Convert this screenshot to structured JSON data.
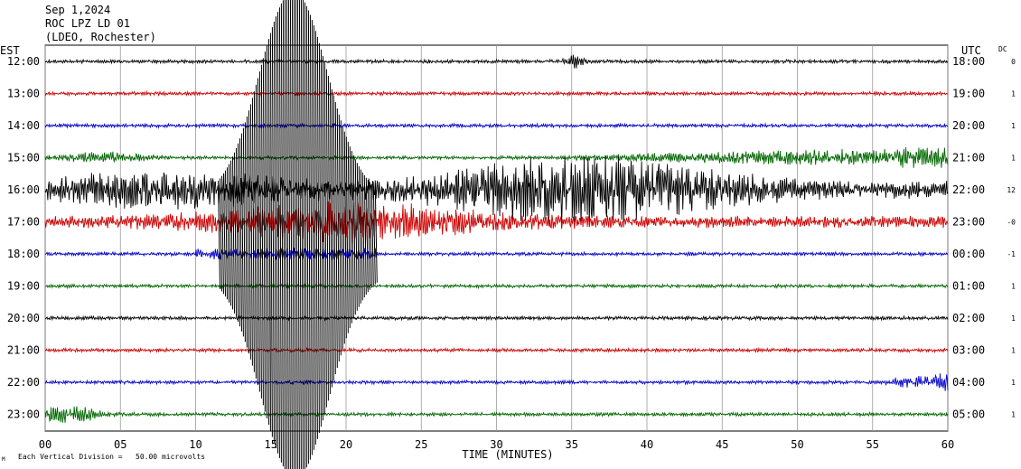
{
  "header": {
    "date": "Sep 1,2024",
    "station": "ROC LPZ LD 01",
    "network": "(LDEO, Rochester)"
  },
  "left_axis_label": "EST",
  "right_axis_label": "UTC",
  "dc_label": "DC",
  "footer_note": "Each Vertical Division =   50.00 microvolts",
  "corner_mark": "M",
  "chart_data": {
    "type": "line",
    "xlabel": "TIME (MINUTES)",
    "xlim": [
      0,
      60
    ],
    "x_ticks": [
      "00",
      "05",
      "10",
      "15",
      "20",
      "25",
      "30",
      "35",
      "40",
      "45",
      "50",
      "55",
      "60"
    ],
    "row_colors": [
      "#000000",
      "#cc0000",
      "#0000cc",
      "#006600"
    ],
    "rows": [
      {
        "est": "12:00",
        "utc": "18:00",
        "dc": "0"
      },
      {
        "est": "13:00",
        "utc": "19:00",
        "dc": "1"
      },
      {
        "est": "14:00",
        "utc": "20:00",
        "dc": "1"
      },
      {
        "est": "15:00",
        "utc": "21:00",
        "dc": "1"
      },
      {
        "est": "16:00",
        "utc": "22:00",
        "dc": "12"
      },
      {
        "est": "17:00",
        "utc": "23:00",
        "dc": "-0"
      },
      {
        "est": "18:00",
        "utc": "00:00",
        "dc": "-1"
      },
      {
        "est": "19:00",
        "utc": "01:00",
        "dc": "1"
      },
      {
        "est": "20:00",
        "utc": "02:00",
        "dc": "1"
      },
      {
        "est": "21:00",
        "utc": "03:00",
        "dc": "1"
      },
      {
        "est": "22:00",
        "utc": "04:00",
        "dc": "1"
      },
      {
        "est": "23:00",
        "utc": "05:00",
        "dc": "1"
      }
    ]
  }
}
